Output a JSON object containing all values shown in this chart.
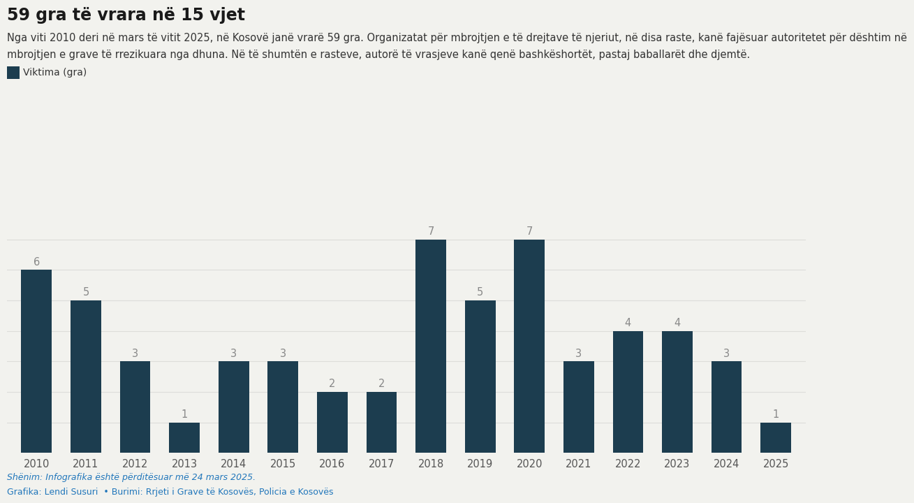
{
  "title": "59 gra të vrara në 15 vjet",
  "subtitle_line1": "Nga viti 2010 deri në mars të vitit 2025, në Kosovë janë vrarë 59 gra. Organizatat për mbrojtjen e të drejtave të njeriut, në disa raste, kanë fajësuar autoritetet për dështim në",
  "subtitle_line2": "mbrojtjen e grave të rrezikuara nga dhuna. Në të shumtën e rasteve, autorë të vrasjeve kanë qenë bashkëshortët, pastaj baballarët dhe djemtë.",
  "legend_label": "Viktima (gra)",
  "years": [
    2010,
    2011,
    2012,
    2013,
    2014,
    2015,
    2016,
    2017,
    2018,
    2019,
    2020,
    2021,
    2022,
    2023,
    2024,
    2025
  ],
  "values": [
    6,
    5,
    3,
    1,
    3,
    3,
    2,
    2,
    7,
    5,
    7,
    3,
    4,
    4,
    3,
    1
  ],
  "bar_color": "#1c3d4f",
  "background_color": "#f2f2ee",
  "title_fontsize": 17,
  "subtitle_fontsize": 10.5,
  "bar_label_fontsize": 10.5,
  "bar_label_color": "#888888",
  "axis_tick_fontsize": 10.5,
  "footnote1": "Shënim: Infografika është përditësuar më 24 mars 2025.",
  "footnote2": "Grafika: Lendi Susuri  • Burimi: Rrjeti i Grave të Kosovës, Policia e Kosovës",
  "footnote_color": "#2277bb",
  "ylim": [
    0,
    8
  ],
  "yticks": [
    1,
    2,
    3,
    4,
    5,
    6,
    7
  ],
  "grid_color": "#ddddda",
  "title_color": "#1a1a1a",
  "subtitle_color": "#333333",
  "tick_color": "#555555"
}
